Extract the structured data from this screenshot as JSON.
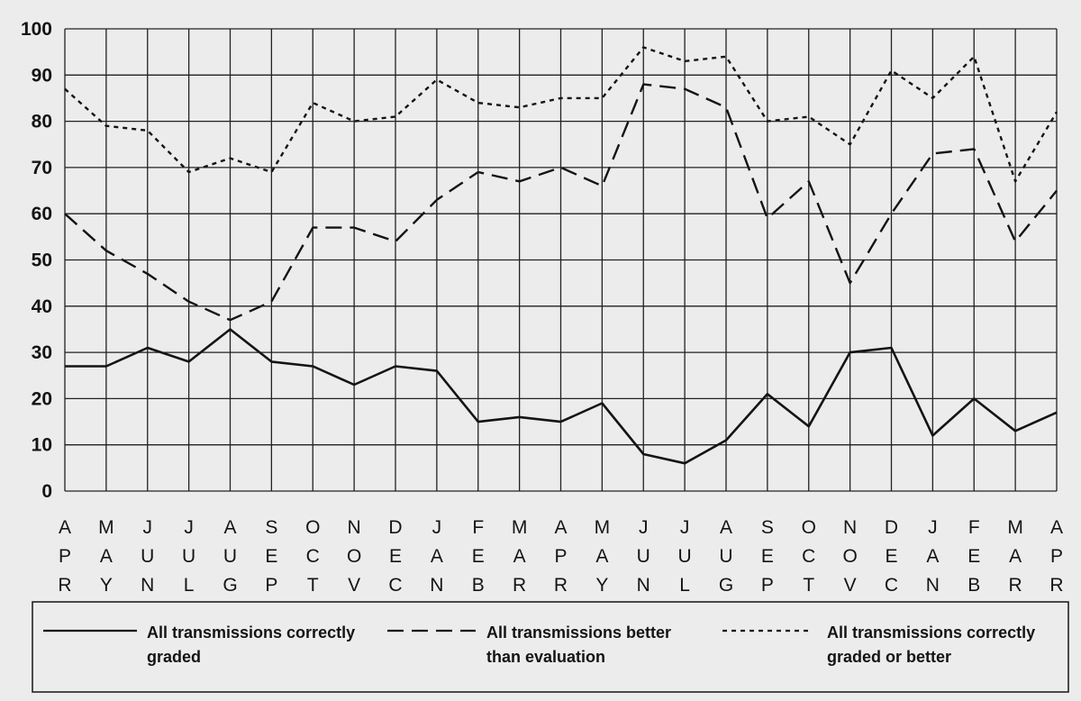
{
  "chart_data": {
    "type": "line",
    "title": "",
    "xlabel": "",
    "ylabel": "",
    "ylim": [
      0,
      100
    ],
    "yticks": [
      0,
      10,
      20,
      30,
      40,
      50,
      60,
      70,
      80,
      90,
      100
    ],
    "grid": true,
    "legend_position": "bottom",
    "categories": [
      [
        "A",
        "P",
        "R"
      ],
      [
        "M",
        "A",
        "Y"
      ],
      [
        "J",
        "U",
        "N"
      ],
      [
        "J",
        "U",
        "L"
      ],
      [
        "A",
        "U",
        "G"
      ],
      [
        "S",
        "E",
        "P"
      ],
      [
        "O",
        "C",
        "T"
      ],
      [
        "N",
        "O",
        "V"
      ],
      [
        "D",
        "E",
        "C"
      ],
      [
        "J",
        "A",
        "N"
      ],
      [
        "F",
        "E",
        "B"
      ],
      [
        "M",
        "A",
        "R"
      ],
      [
        "A",
        "P",
        "R"
      ],
      [
        "M",
        "A",
        "Y"
      ],
      [
        "J",
        "U",
        "N"
      ],
      [
        "J",
        "U",
        "L"
      ],
      [
        "A",
        "U",
        "G"
      ],
      [
        "S",
        "E",
        "P"
      ],
      [
        "O",
        "C",
        "T"
      ],
      [
        "N",
        "O",
        "V"
      ],
      [
        "D",
        "E",
        "C"
      ],
      [
        "J",
        "A",
        "N"
      ],
      [
        "F",
        "E",
        "B"
      ],
      [
        "M",
        "A",
        "R"
      ],
      [
        "A",
        "P",
        "R"
      ]
    ],
    "series": [
      {
        "name": "All transmissions correctly graded",
        "style": "solid",
        "values": [
          27,
          27,
          31,
          28,
          35,
          28,
          27,
          23,
          27,
          26,
          15,
          16,
          15,
          19,
          8,
          6,
          11,
          21,
          14,
          30,
          31,
          12,
          20,
          13,
          17
        ]
      },
      {
        "name": "All transmissions better than evaluation",
        "style": "dashed",
        "values": [
          60,
          52,
          47,
          41,
          37,
          41,
          57,
          57,
          54,
          63,
          69,
          67,
          70,
          66,
          88,
          87,
          83,
          59,
          67,
          45,
          60,
          73,
          74,
          54,
          65
        ]
      },
      {
        "name": "All transmissions correctly graded or better",
        "style": "dotted",
        "values": [
          87,
          79,
          78,
          69,
          72,
          69,
          84,
          80,
          81,
          89,
          84,
          83,
          85,
          85,
          96,
          93,
          94,
          80,
          81,
          75,
          91,
          85,
          94,
          67,
          82
        ]
      }
    ],
    "legend": [
      {
        "line1": "All transmissions correctly",
        "line2": "graded",
        "style": "solid"
      },
      {
        "line1": "All transmissions better",
        "line2": "than evaluation",
        "style": "dashed"
      },
      {
        "line1": "All transmissions correctly",
        "line2": "graded or better",
        "style": "dotted"
      }
    ],
    "colors": {
      "ink": "#141414",
      "grid": "#222222",
      "background": "#ececec"
    }
  }
}
